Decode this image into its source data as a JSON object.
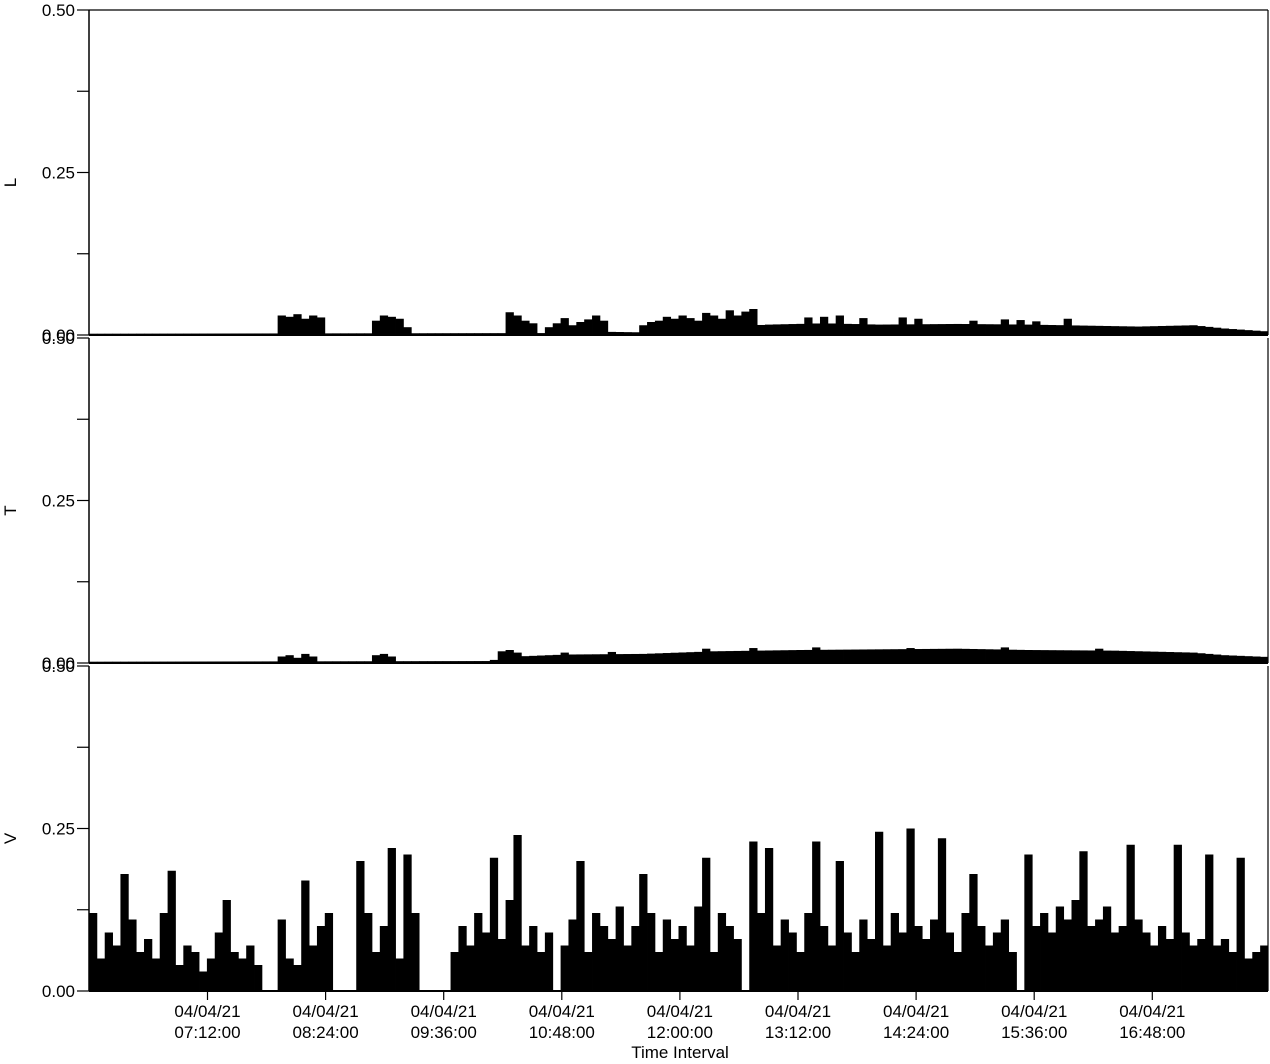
{
  "chart_data": {
    "type": "bar",
    "xlabel": "Time Interval",
    "x_ticks": [
      {
        "date": "04/04/21",
        "time": "07:12:00"
      },
      {
        "date": "04/04/21",
        "time": "08:24:00"
      },
      {
        "date": "04/04/21",
        "time": "09:36:00"
      },
      {
        "date": "04/04/21",
        "time": "10:48:00"
      },
      {
        "date": "04/04/21",
        "time": "12:00:00"
      },
      {
        "date": "04/04/21",
        "time": "13:12:00"
      },
      {
        "date": "04/04/21",
        "time": "14:24:00"
      },
      {
        "date": "04/04/21",
        "time": "15:36:00"
      },
      {
        "date": "04/04/21",
        "time": "16:48:00"
      }
    ],
    "x_range": [
      "04/04/21 06:12:00",
      "04/04/21 18:00:00"
    ],
    "ylim": [
      0,
      0.5
    ],
    "y_ticks": [
      "0.00",
      "0.25",
      "0.50"
    ],
    "panels": [
      {
        "ylabel": "L",
        "baseline": [
          [
            0,
            0.002
          ],
          [
            60,
            0.003
          ],
          [
            65,
            0.005
          ],
          [
            70,
            0.004
          ],
          [
            79,
            0.012
          ],
          [
            86,
            0.016
          ],
          [
            93,
            0.018
          ],
          [
            100,
            0.016
          ],
          [
            110,
            0.017
          ],
          [
            119,
            0.016
          ],
          [
            133,
            0.013
          ],
          [
            140,
            0.015
          ],
          [
            144,
            0.01
          ],
          [
            150,
            0.005
          ]
        ],
        "spikes": [
          [
            91,
            0.027
          ],
          [
            93,
            0.028
          ],
          [
            95,
            0.03
          ],
          [
            98,
            0.026
          ],
          [
            103,
            0.027
          ],
          [
            105,
            0.025
          ],
          [
            112,
            0.022
          ],
          [
            116,
            0.024
          ],
          [
            118,
            0.023
          ],
          [
            120,
            0.021
          ],
          [
            124,
            0.025
          ]
        ],
        "bursts": [
          {
            "start": 24,
            "end": 29,
            "values": [
              0.03,
              0.028,
              0.032,
              0.025,
              0.03,
              0.027
            ]
          },
          {
            "start": 36,
            "end": 40,
            "values": [
              0.022,
              0.03,
              0.028,
              0.025,
              0.012
            ]
          },
          {
            "start": 53,
            "end": 56,
            "values": [
              0.035,
              0.03,
              0.022,
              0.018
            ]
          },
          {
            "start": 58,
            "end": 65,
            "values": [
              0.012,
              0.018,
              0.026,
              0.015,
              0.02,
              0.024,
              0.03,
              0.022
            ]
          },
          {
            "start": 70,
            "end": 84,
            "values": [
              0.015,
              0.02,
              0.022,
              0.028,
              0.025,
              0.03,
              0.026,
              0.022,
              0.034,
              0.03,
              0.025,
              0.038,
              0.03,
              0.036,
              0.04
            ]
          }
        ]
      },
      {
        "ylabel": "T",
        "baseline": [
          [
            0,
            0.002
          ],
          [
            50,
            0.003
          ],
          [
            54,
            0.01
          ],
          [
            60,
            0.013
          ],
          [
            70,
            0.014
          ],
          [
            79,
            0.018
          ],
          [
            90,
            0.02
          ],
          [
            100,
            0.021
          ],
          [
            110,
            0.022
          ],
          [
            119,
            0.02
          ],
          [
            130,
            0.019
          ],
          [
            140,
            0.016
          ],
          [
            144,
            0.012
          ],
          [
            150,
            0.009
          ]
        ],
        "spikes": [
          [
            52,
            0.018
          ],
          [
            60,
            0.016
          ],
          [
            66,
            0.017
          ],
          [
            78,
            0.022
          ],
          [
            84,
            0.023
          ],
          [
            92,
            0.024
          ],
          [
            104,
            0.023
          ],
          [
            116,
            0.024
          ],
          [
            128,
            0.022
          ]
        ],
        "bursts": [
          {
            "start": 24,
            "end": 28,
            "values": [
              0.01,
              0.012,
              0.008,
              0.014,
              0.01
            ]
          },
          {
            "start": 36,
            "end": 38,
            "values": [
              0.012,
              0.014,
              0.01
            ]
          },
          {
            "start": 53,
            "end": 54,
            "values": [
              0.02,
              0.016
            ]
          }
        ]
      },
      {
        "ylabel": "V",
        "baseline": [
          [
            0,
            0.06
          ],
          [
            150,
            0.06
          ]
        ],
        "spikes": [
          [
            4,
            0.18
          ],
          [
            10,
            0.185
          ],
          [
            17,
            0.14
          ],
          [
            27,
            0.17
          ],
          [
            34,
            0.2
          ],
          [
            38,
            0.22
          ],
          [
            40,
            0.21
          ],
          [
            51,
            0.205
          ],
          [
            54,
            0.24
          ],
          [
            62,
            0.2
          ],
          [
            70,
            0.18
          ],
          [
            78,
            0.205
          ],
          [
            84,
            0.23
          ],
          [
            86,
            0.22
          ],
          [
            92,
            0.23
          ],
          [
            95,
            0.2
          ],
          [
            100,
            0.245
          ],
          [
            104,
            0.25
          ],
          [
            108,
            0.235
          ],
          [
            112,
            0.18
          ],
          [
            119,
            0.21
          ],
          [
            126,
            0.215
          ],
          [
            132,
            0.225
          ],
          [
            138,
            0.225
          ],
          [
            142,
            0.21
          ],
          [
            146,
            0.205
          ]
        ],
        "bursts": [
          {
            "start": 0,
            "end": 21,
            "values": [
              0.12,
              0.05,
              0.09,
              0.07,
              0.13,
              0.11,
              0.06,
              0.08,
              0.05,
              0.12,
              0.1,
              0.04,
              0.07,
              0.06,
              0.03,
              0.05,
              0.09,
              0.04,
              0.06,
              0.05,
              0.07,
              0.04
            ]
          },
          {
            "start": 24,
            "end": 30,
            "values": [
              0.11,
              0.05,
              0.04,
              0.13,
              0.07,
              0.1,
              0.12
            ]
          },
          {
            "start": 35,
            "end": 41,
            "values": [
              0.12,
              0.06,
              0.1,
              0.08,
              0.05,
              0.14,
              0.12
            ]
          },
          {
            "start": 46,
            "end": 58,
            "values": [
              0.06,
              0.1,
              0.07,
              0.12,
              0.09,
              0.11,
              0.08,
              0.14,
              0.11,
              0.07,
              0.1,
              0.06,
              0.09
            ]
          },
          {
            "start": 60,
            "end": 82,
            "values": [
              0.07,
              0.11,
              0.09,
              0.06,
              0.12,
              0.1,
              0.08,
              0.13,
              0.07,
              0.1,
              0.09,
              0.12,
              0.06,
              0.11,
              0.08,
              0.1,
              0.07,
              0.13,
              0.09,
              0.06,
              0.12,
              0.1,
              0.08
            ]
          },
          {
            "start": 84,
            "end": 117,
            "values": [
              0.14,
              0.12,
              0.1,
              0.07,
              0.11,
              0.09,
              0.06,
              0.12,
              0.08,
              0.1,
              0.07,
              0.13,
              0.09,
              0.06,
              0.11,
              0.08,
              0.1,
              0.07,
              0.12,
              0.09,
              0.06,
              0.1,
              0.08,
              0.11,
              0.07,
              0.09,
              0.06,
              0.12,
              0.08,
              0.1,
              0.07,
              0.09,
              0.11,
              0.06
            ]
          },
          {
            "start": 120,
            "end": 150,
            "values": [
              0.1,
              0.12,
              0.09,
              0.13,
              0.11,
              0.14,
              0.12,
              0.1,
              0.11,
              0.13,
              0.09,
              0.1,
              0.08,
              0.11,
              0.09,
              0.07,
              0.1,
              0.08,
              0.06,
              0.09,
              0.07,
              0.08,
              0.06,
              0.07,
              0.08,
              0.06,
              0.07,
              0.05,
              0.06,
              0.07,
              0.06
            ]
          }
        ]
      }
    ]
  }
}
